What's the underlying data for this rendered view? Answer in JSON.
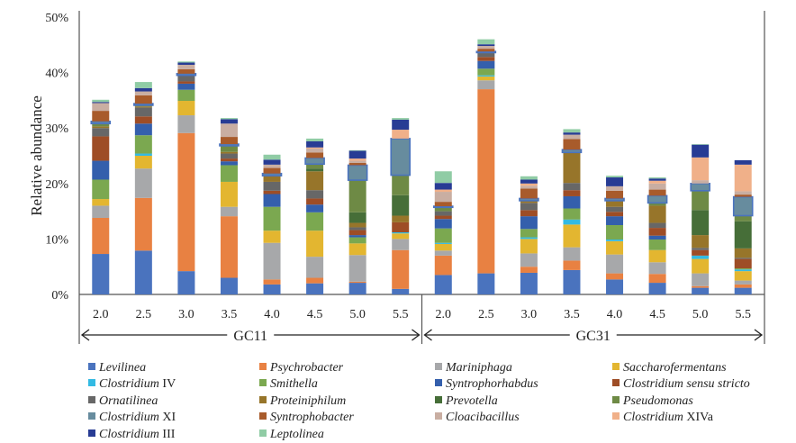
{
  "chart_data": {
    "type": "bar",
    "stacked": true,
    "title": "",
    "xlabel": "",
    "ylabel": "Relative abundance",
    "ylim": [
      0,
      50
    ],
    "yticks": [
      "0%",
      "10%",
      "20%",
      "30%",
      "40%",
      "50%"
    ],
    "categories": [
      "2.0",
      "2.5",
      "3.0",
      "3.5",
      "4.0",
      "4.5",
      "5.0",
      "5.5",
      "2.0",
      "2.5",
      "3.0",
      "3.5",
      "4.0",
      "4.5",
      "5.0",
      "5.5"
    ],
    "groups": [
      {
        "label": "GC11",
        "count": 8
      },
      {
        "label": "GC31",
        "count": 8
      }
    ],
    "legend_position": "bottom",
    "series": [
      {
        "name": "Levilinea",
        "suffix": "",
        "color": "#4A73BE",
        "values": [
          7.3,
          7.9,
          4.2,
          3.0,
          1.8,
          2.0,
          2.1,
          1.0,
          3.5,
          3.8,
          3.9,
          4.4,
          2.7,
          2.1,
          1.2,
          1.2
        ]
      },
      {
        "name": "Psychrobacter",
        "suffix": "",
        "color": "#E88142",
        "values": [
          6.5,
          9.5,
          24.9,
          11.1,
          0.9,
          1.0,
          0.2,
          7.0,
          3.5,
          33.2,
          1.1,
          1.7,
          1.1,
          1.6,
          0.3,
          0.6
        ]
      },
      {
        "name": "Mariniphaga",
        "suffix": "",
        "color": "#A7A8AA",
        "values": [
          2.2,
          5.3,
          3.2,
          1.7,
          6.6,
          3.8,
          4.8,
          2.0,
          0.9,
          1.6,
          2.4,
          2.4,
          3.4,
          2.1,
          2.3,
          0.7
        ]
      },
      {
        "name": "Saccharofermentans",
        "suffix": "",
        "color": "#E3B630",
        "values": [
          1.2,
          2.3,
          2.6,
          4.5,
          2.2,
          4.7,
          2.1,
          1.0,
          1.2,
          0.7,
          2.6,
          4.1,
          2.4,
          2.2,
          2.6,
          1.7
        ]
      },
      {
        "name": "Clostridium",
        "suffix": " IV",
        "color": "#33BAE3",
        "values": [
          0,
          0.4,
          0,
          0,
          0,
          0,
          0,
          0.2,
          0.2,
          0.2,
          0.3,
          0.9,
          0.3,
          0,
          0.6,
          0.3
        ]
      },
      {
        "name": "Smithella",
        "suffix": "",
        "color": "#7BA850",
        "values": [
          3.5,
          3.3,
          2.0,
          3.0,
          4.3,
          3.3,
          1.1,
          0,
          2.6,
          1.2,
          1.5,
          2.0,
          2.6,
          1.9,
          0,
          0.2
        ]
      },
      {
        "name": "Syntrophorhabdus",
        "suffix": "",
        "color": "#345FAC",
        "values": [
          3.4,
          2.1,
          1.1,
          0.7,
          2.3,
          1.4,
          0.4,
          0,
          1.7,
          1.4,
          2.3,
          2.2,
          1.6,
          0.7,
          0,
          0
        ]
      },
      {
        "name": "Clostridium sensu stricto",
        "suffix": "",
        "color": "#9E4D26",
        "values": [
          4.4,
          1.3,
          0.4,
          0.5,
          0.6,
          1.1,
          0.9,
          1.8,
          0.6,
          0.7,
          1.1,
          1.1,
          0.8,
          1.4,
          1.0,
          1.7
        ]
      },
      {
        "name": "Ornatilinea",
        "suffix": "",
        "color": "#676767",
        "values": [
          1.5,
          1.6,
          1.1,
          0.9,
          1.6,
          1.5,
          0.5,
          0,
          0.8,
          0.8,
          1.3,
          1.3,
          0.9,
          0.9,
          0.4,
          0.2
        ]
      },
      {
        "name": "Proteiniphilum",
        "suffix": "",
        "color": "#97752A",
        "values": [
          0.3,
          0.2,
          0,
          0.3,
          1.1,
          3.4,
          0.8,
          1.2,
          0,
          0,
          0.4,
          5.5,
          1.1,
          3.1,
          2.3,
          1.7
        ]
      },
      {
        "name": "Prevotella",
        "suffix": "",
        "color": "#466E38",
        "values": [
          0,
          0,
          0,
          0,
          0,
          0.5,
          1.9,
          3.7,
          0,
          0,
          0,
          0,
          0,
          0,
          4.5,
          4.9
        ]
      },
      {
        "name": "Pseudomonas",
        "suffix": "",
        "color": "#6E8A45",
        "values": [
          0.5,
          0.2,
          0,
          1.1,
          0,
          0.8,
          5.8,
          3.6,
          0.7,
          0,
          0,
          0,
          0,
          0.5,
          3.5,
          1.0
        ]
      },
      {
        "name": "Clostridium",
        "suffix": " XI",
        "color": "#678C9E",
        "values": [
          0.4,
          0.3,
          0.3,
          0.3,
          0.4,
          1.1,
          2.7,
          6.6,
          0.2,
          0.2,
          0.4,
          0.5,
          0.4,
          1.3,
          1.3,
          3.4
        ]
      },
      {
        "name": "Syntrophobacter",
        "suffix": "",
        "color": "#A85B2B",
        "values": [
          1.9,
          1.5,
          0.8,
          1.3,
          1.0,
          1.0,
          0.4,
          0,
          0.8,
          0.5,
          1.8,
          1.9,
          1.4,
          1.1,
          0,
          0.4
        ]
      },
      {
        "name": "Cloacibacillus",
        "suffix": "",
        "color": "#C9AEA2",
        "values": [
          1.4,
          0.7,
          0.8,
          2.4,
          0.6,
          0.7,
          0.4,
          0,
          1.8,
          0.5,
          0.5,
          0.8,
          0.8,
          1.1,
          0.6,
          0.6
        ]
      },
      {
        "name": "Clostridium",
        "suffix": " XIVa",
        "color": "#F0B089",
        "values": [
          0,
          0,
          0,
          0,
          0,
          0.2,
          0.4,
          1.6,
          0.4,
          0,
          0.4,
          0,
          0,
          0.5,
          4.1,
          4.8
        ]
      },
      {
        "name": "Clostridium",
        "suffix": " III",
        "color": "#283C94",
        "values": [
          0.2,
          0.6,
          0.4,
          0.8,
          0.9,
          1.1,
          1.4,
          1.8,
          1.2,
          0.3,
          0.7,
          0.4,
          1.6,
          0.4,
          2.3,
          0.8
        ]
      },
      {
        "name": "Leptolinea",
        "suffix": "",
        "color": "#90CCA5",
        "values": [
          0.4,
          1.1,
          0.2,
          0.2,
          0.9,
          0.5,
          0.1,
          0.3,
          2.1,
          0.9,
          0.6,
          0.6,
          0.3,
          0.2,
          0.1,
          0
        ]
      }
    ],
    "highlight_series": "Clostridium XI",
    "highlight_border_color": "#4A73BE"
  }
}
